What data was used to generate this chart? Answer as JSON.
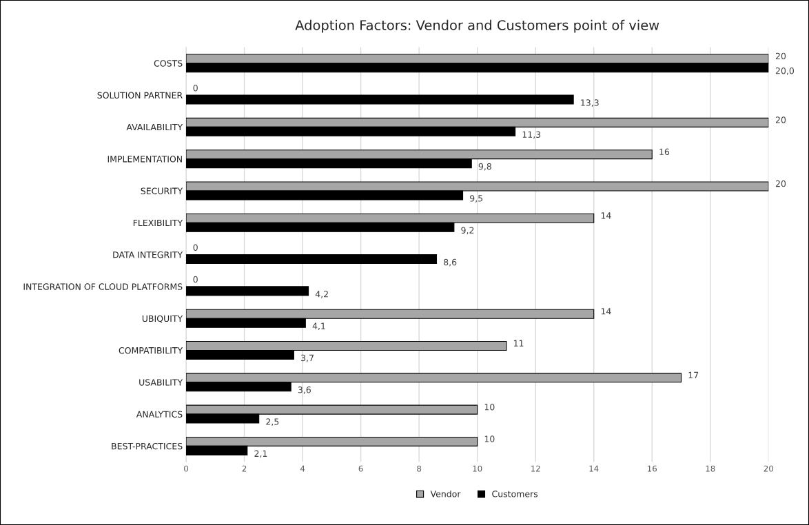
{
  "chart_data": {
    "type": "bar",
    "orientation": "horizontal",
    "title": "Adoption Factors: Vendor and Customers point of view",
    "categories": [
      "COSTS",
      "SOLUTION PARTNER",
      "AVAILABILITY",
      "IMPLEMENTATION",
      "SECURITY",
      "FLEXIBILITY",
      "DATA INTEGRITY",
      "INTEGRATION OF CLOUD PLATFORMS",
      "UBIQUITY",
      "COMPATIBILITY",
      "USABILITY",
      "ANALYTICS",
      "BEST-PRACTICES"
    ],
    "series": [
      {
        "name": "Vendor",
        "color": "#a6a6a6",
        "values": [
          20,
          0,
          20,
          16,
          20,
          14,
          0,
          0,
          14,
          11,
          17,
          10,
          10
        ],
        "value_labels": [
          "20",
          "0",
          "20",
          "16",
          "20",
          "14",
          "0",
          "0",
          "14",
          "11",
          "17",
          "10",
          "10"
        ]
      },
      {
        "name": "Customers",
        "color": "#000000",
        "values": [
          20.0,
          13.3,
          11.3,
          9.8,
          9.5,
          9.2,
          8.6,
          4.2,
          4.1,
          3.7,
          3.6,
          2.5,
          2.1
        ],
        "value_labels": [
          "20,0",
          "13,3",
          "11,3",
          "9,8",
          "9,5",
          "9,2",
          "8,6",
          "4,2",
          "4,1",
          "3,7",
          "3,6",
          "2,5",
          "2,1"
        ]
      }
    ],
    "xlim": [
      0,
      20
    ],
    "xticks": [
      0,
      2,
      4,
      6,
      8,
      10,
      12,
      14,
      16,
      18,
      20
    ],
    "grid": "x",
    "legend": "bottom"
  }
}
